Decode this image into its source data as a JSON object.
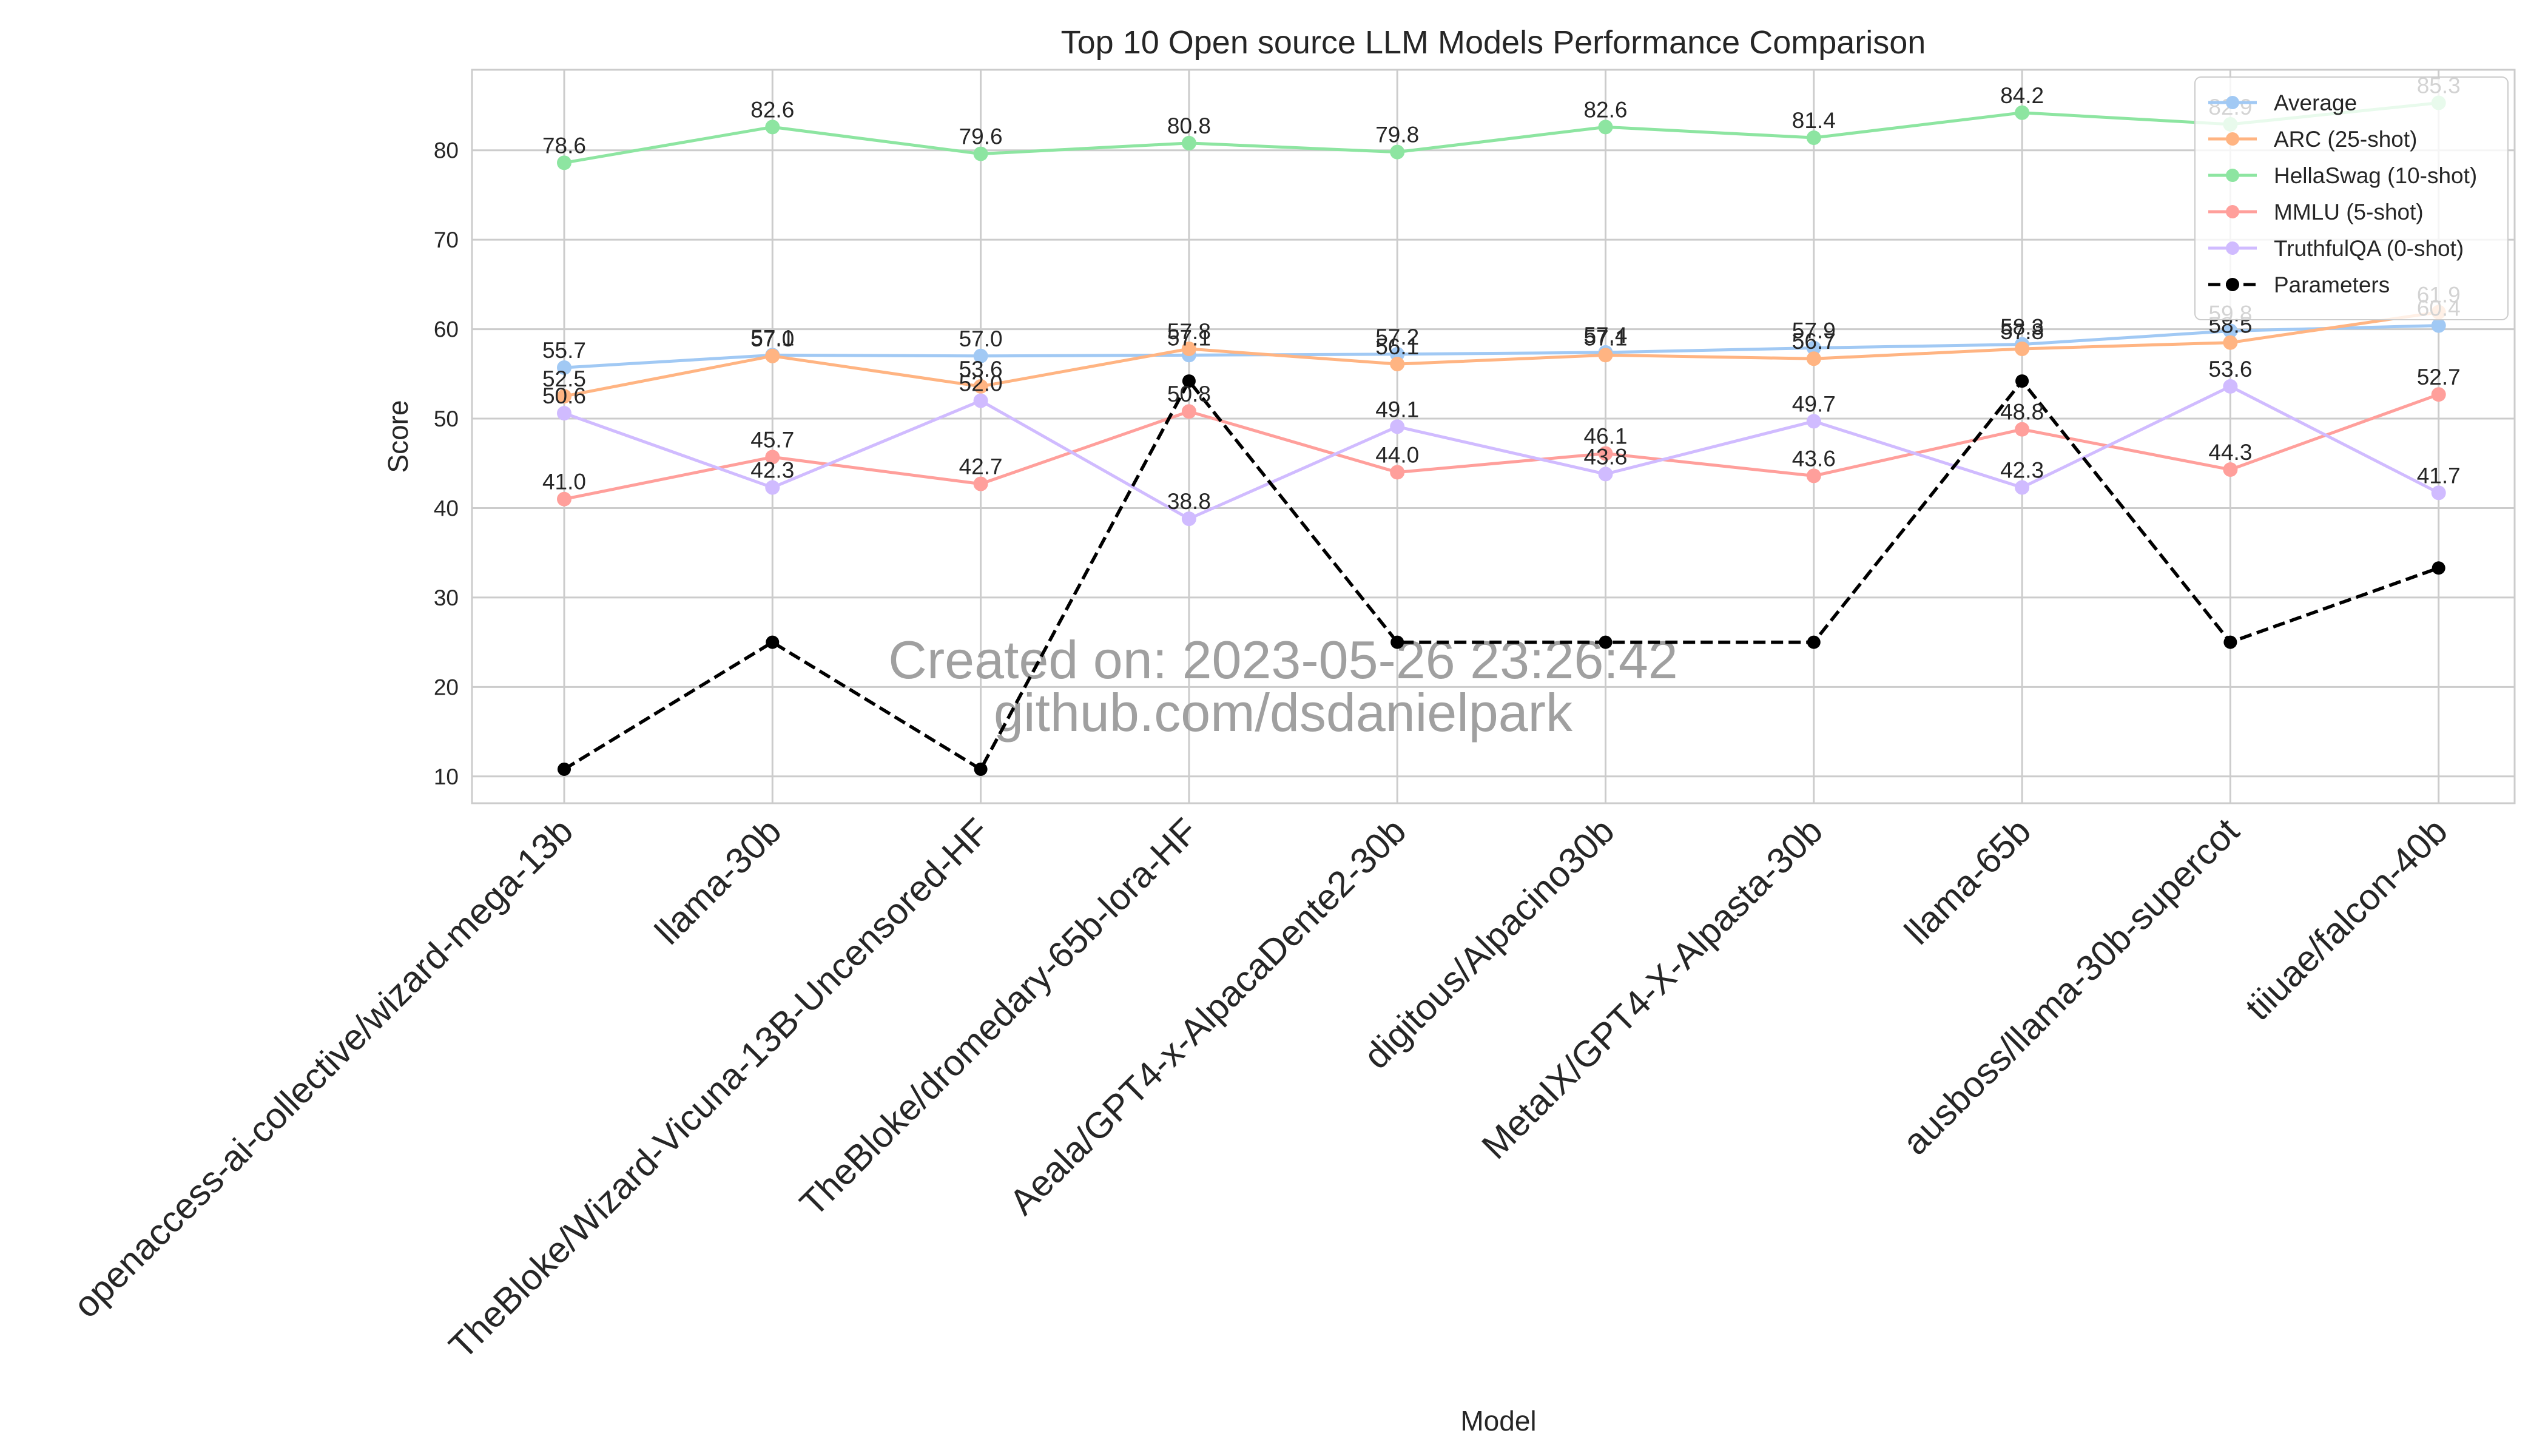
{
  "chart_data": {
    "type": "line",
    "title": "Top 10 Open source LLM Models Performance Comparison",
    "xlabel": "Model",
    "ylabel": "Score",
    "ylim": [
      7,
      89
    ],
    "yticks": [
      10,
      20,
      30,
      40,
      50,
      60,
      70,
      80
    ],
    "grid": true,
    "legend_position": "top-right",
    "categories": [
      "openaccess-ai-collective/wizard-mega-13b",
      "llama-30b",
      "TheBloke/Wizard-Vicuna-13B-Uncensored-HF",
      "TheBloke/dromedary-65b-lora-HF",
      "Aeala/GPT4-x-AlpacaDente2-30b",
      "digitous/Alpacino30b",
      "MetaIX/GPT4-X-Alpasta-30b",
      "llama-65b",
      "ausboss/llama-30b-supercot",
      "tiiuae/falcon-40b"
    ],
    "series": [
      {
        "name": "Average",
        "color": "#a1c9f4",
        "dashed": false,
        "labeled": true,
        "values": [
          55.7,
          57.1,
          57.0,
          57.1,
          57.2,
          57.4,
          57.9,
          58.3,
          59.8,
          60.4
        ]
      },
      {
        "name": "ARC (25-shot)",
        "color": "#ffb482",
        "dashed": false,
        "labeled": true,
        "values": [
          52.5,
          57.0,
          53.6,
          57.8,
          56.1,
          57.1,
          56.7,
          57.8,
          58.5,
          61.9
        ]
      },
      {
        "name": "HellaSwag (10-shot)",
        "color": "#8de5a1",
        "dashed": false,
        "labeled": true,
        "values": [
          78.6,
          82.6,
          79.6,
          80.8,
          79.8,
          82.6,
          81.4,
          84.2,
          82.9,
          85.3
        ]
      },
      {
        "name": "MMLU (5-shot)",
        "color": "#ff9f9b",
        "dashed": false,
        "labeled": true,
        "values": [
          41.0,
          45.7,
          42.7,
          50.8,
          44.0,
          46.1,
          43.6,
          48.8,
          44.3,
          52.7
        ]
      },
      {
        "name": "TruthfulQA (0-shot)",
        "color": "#d0bbff",
        "dashed": false,
        "labeled": true,
        "values": [
          50.6,
          42.3,
          52.0,
          38.8,
          49.1,
          43.8,
          49.7,
          42.3,
          53.6,
          41.7
        ]
      },
      {
        "name": "Parameters",
        "color": "#000000",
        "dashed": true,
        "labeled": false,
        "values": [
          10.8,
          25.0,
          10.8,
          54.2,
          25.0,
          25.0,
          25.0,
          54.2,
          25.0,
          33.3
        ]
      }
    ],
    "watermark": [
      "Created on: 2023-05-26 23:26:42",
      "github.com/dsdanielpark"
    ]
  }
}
